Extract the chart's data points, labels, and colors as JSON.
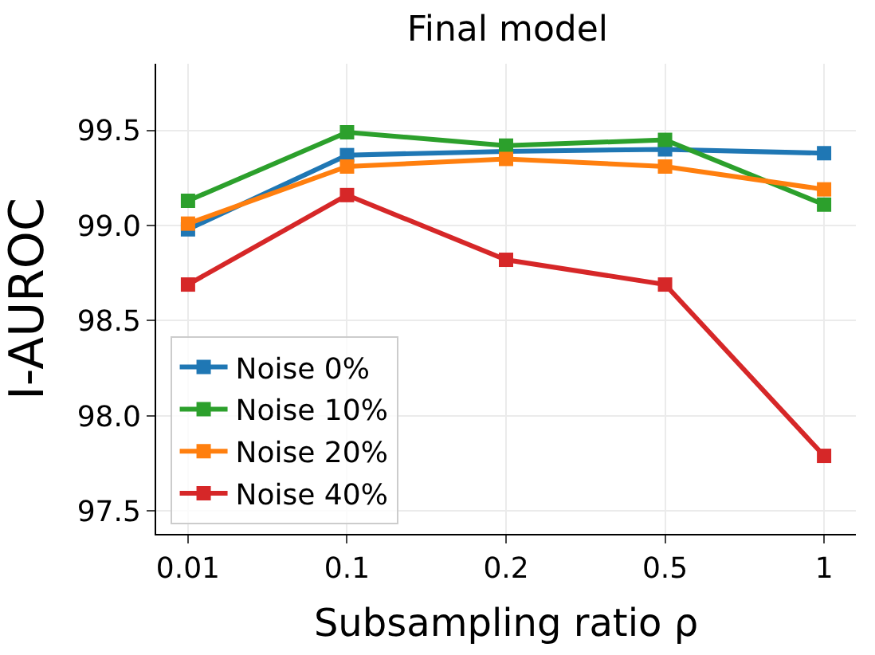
{
  "chart_data": {
    "type": "line",
    "title": "Final model",
    "xlabel": "Subsampling ratio ρ",
    "ylabel": "I-AUROC",
    "categories": [
      "0.01",
      "0.1",
      "0.2",
      "0.5",
      "1"
    ],
    "series": [
      {
        "name": "Noise 0%",
        "color": "#1f77b4",
        "values": [
          98.98,
          99.37,
          99.39,
          99.4,
          99.38
        ]
      },
      {
        "name": "Noise 10%",
        "color": "#2ca02c",
        "values": [
          99.13,
          99.49,
          99.42,
          99.45,
          99.11
        ]
      },
      {
        "name": "Noise 20%",
        "color": "#ff7f0e",
        "values": [
          99.01,
          99.31,
          99.35,
          99.31,
          99.19
        ]
      },
      {
        "name": "Noise 40%",
        "color": "#d62728",
        "values": [
          98.69,
          99.16,
          98.82,
          98.69,
          97.79
        ]
      }
    ],
    "ylim": [
      97.38,
      99.85
    ],
    "yticks": [
      {
        "value": 97.5,
        "label": "97.5"
      },
      {
        "value": 98.0,
        "label": "98.0"
      },
      {
        "value": 98.5,
        "label": "98.5"
      },
      {
        "value": 99.0,
        "label": "99.0"
      },
      {
        "value": 99.5,
        "label": "99.5"
      }
    ],
    "grid": true,
    "legend": "bottom left",
    "marker": "square",
    "line_style": "solid"
  }
}
